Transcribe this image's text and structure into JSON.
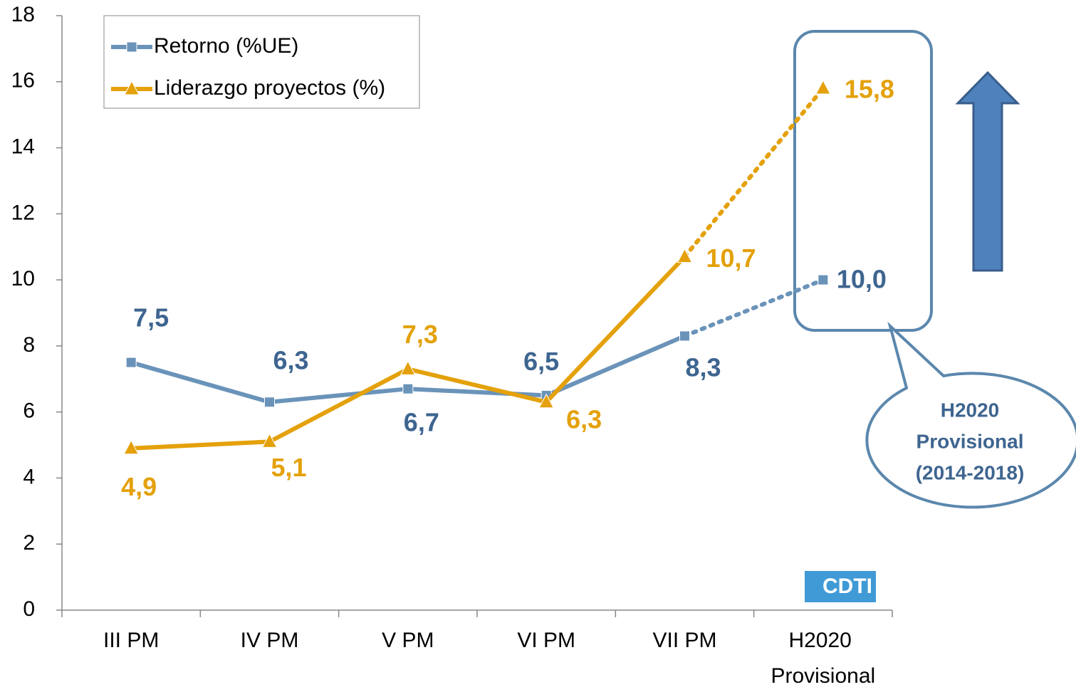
{
  "chart_data": {
    "type": "line",
    "categories": [
      "III PM",
      "IV PM",
      "V PM",
      "VI PM",
      "VII PM",
      "H2020 Provisional"
    ],
    "series": [
      {
        "name": "Retorno (%UE)",
        "color": "#6a93b9",
        "label_color": "#3e6590",
        "marker": "square",
        "values": [
          7.5,
          6.3,
          6.7,
          6.5,
          8.3,
          10.0
        ],
        "value_labels": [
          "7,5",
          "6,3",
          "6,7",
          "6,5",
          "8,3",
          "10,0"
        ],
        "dotted_from": 4
      },
      {
        "name": "Liderazgo proyectos (%)",
        "color": "#e4a10b",
        "label_color": "#e4a10b",
        "marker": "triangle",
        "values": [
          4.9,
          5.1,
          7.3,
          6.3,
          10.7,
          15.8
        ],
        "value_labels": [
          "4,9",
          "5,1",
          "7,3",
          "6,3",
          "10,7",
          "15,8"
        ],
        "dotted_from": 4
      }
    ],
    "ylim": [
      0,
      18
    ],
    "yticks": [
      0,
      2,
      4,
      6,
      8,
      10,
      12,
      14,
      16,
      18
    ],
    "legend": "top-left",
    "annotation_lines": [
      "H2020",
      "Provisional",
      "(2014-2018)"
    ],
    "logo": "CDTI"
  }
}
